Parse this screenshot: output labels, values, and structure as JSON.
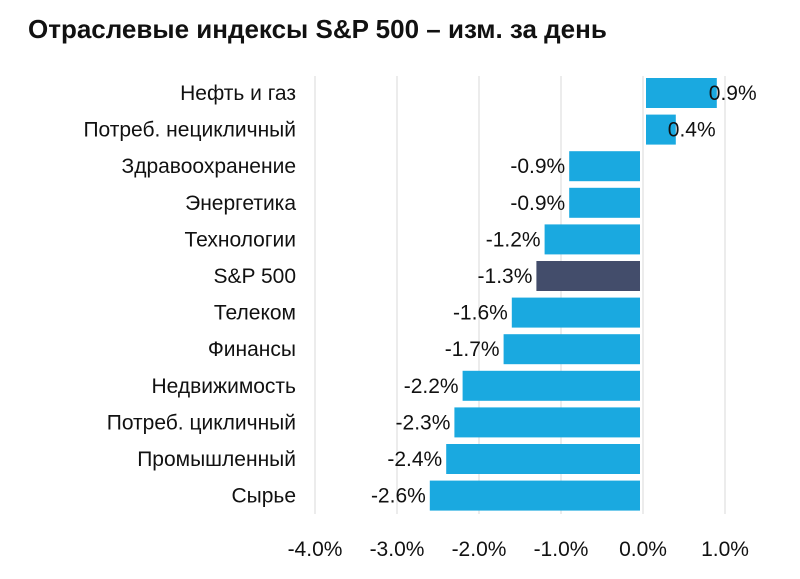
{
  "chart_data": {
    "type": "bar",
    "orientation": "horizontal",
    "title": "Отраслевые индексы S&P 500 – изм. за день",
    "categories": [
      "Нефть и газ",
      "Потреб. нецикличный",
      "Здравоохранение",
      "Энергетика",
      "Технологии",
      "S&P 500",
      "Телеком",
      "Финансы",
      "Недвижимость",
      "Потреб. цикличный",
      "Промышленный",
      "Сырье"
    ],
    "values": [
      0.9,
      0.4,
      -0.9,
      -0.9,
      -1.2,
      -1.3,
      -1.6,
      -1.7,
      -2.2,
      -2.3,
      -2.4,
      -2.6
    ],
    "value_labels": [
      "0.9%",
      "0.4%",
      "-0.9%",
      "-0.9%",
      "-1.2%",
      "-1.3%",
      "-1.6%",
      "-1.7%",
      "-2.2%",
      "-2.3%",
      "-2.4%",
      "-2.6%"
    ],
    "xlim": [
      -4.0,
      1.0
    ],
    "x_ticks": [
      -4.0,
      -3.0,
      -2.0,
      -1.0,
      0.0,
      1.0
    ],
    "x_tick_labels": [
      "-4.0%",
      "-3.0%",
      "-2.0%",
      "-1.0%",
      "0.0%",
      "1.0%"
    ],
    "grid": "vertical",
    "legend": "none",
    "colors": {
      "bar": "#1aa9e0",
      "highlight": "#434d6b",
      "grid": "#d9d9d9",
      "text": "#111111"
    },
    "highlight_category": "S&P 500"
  }
}
